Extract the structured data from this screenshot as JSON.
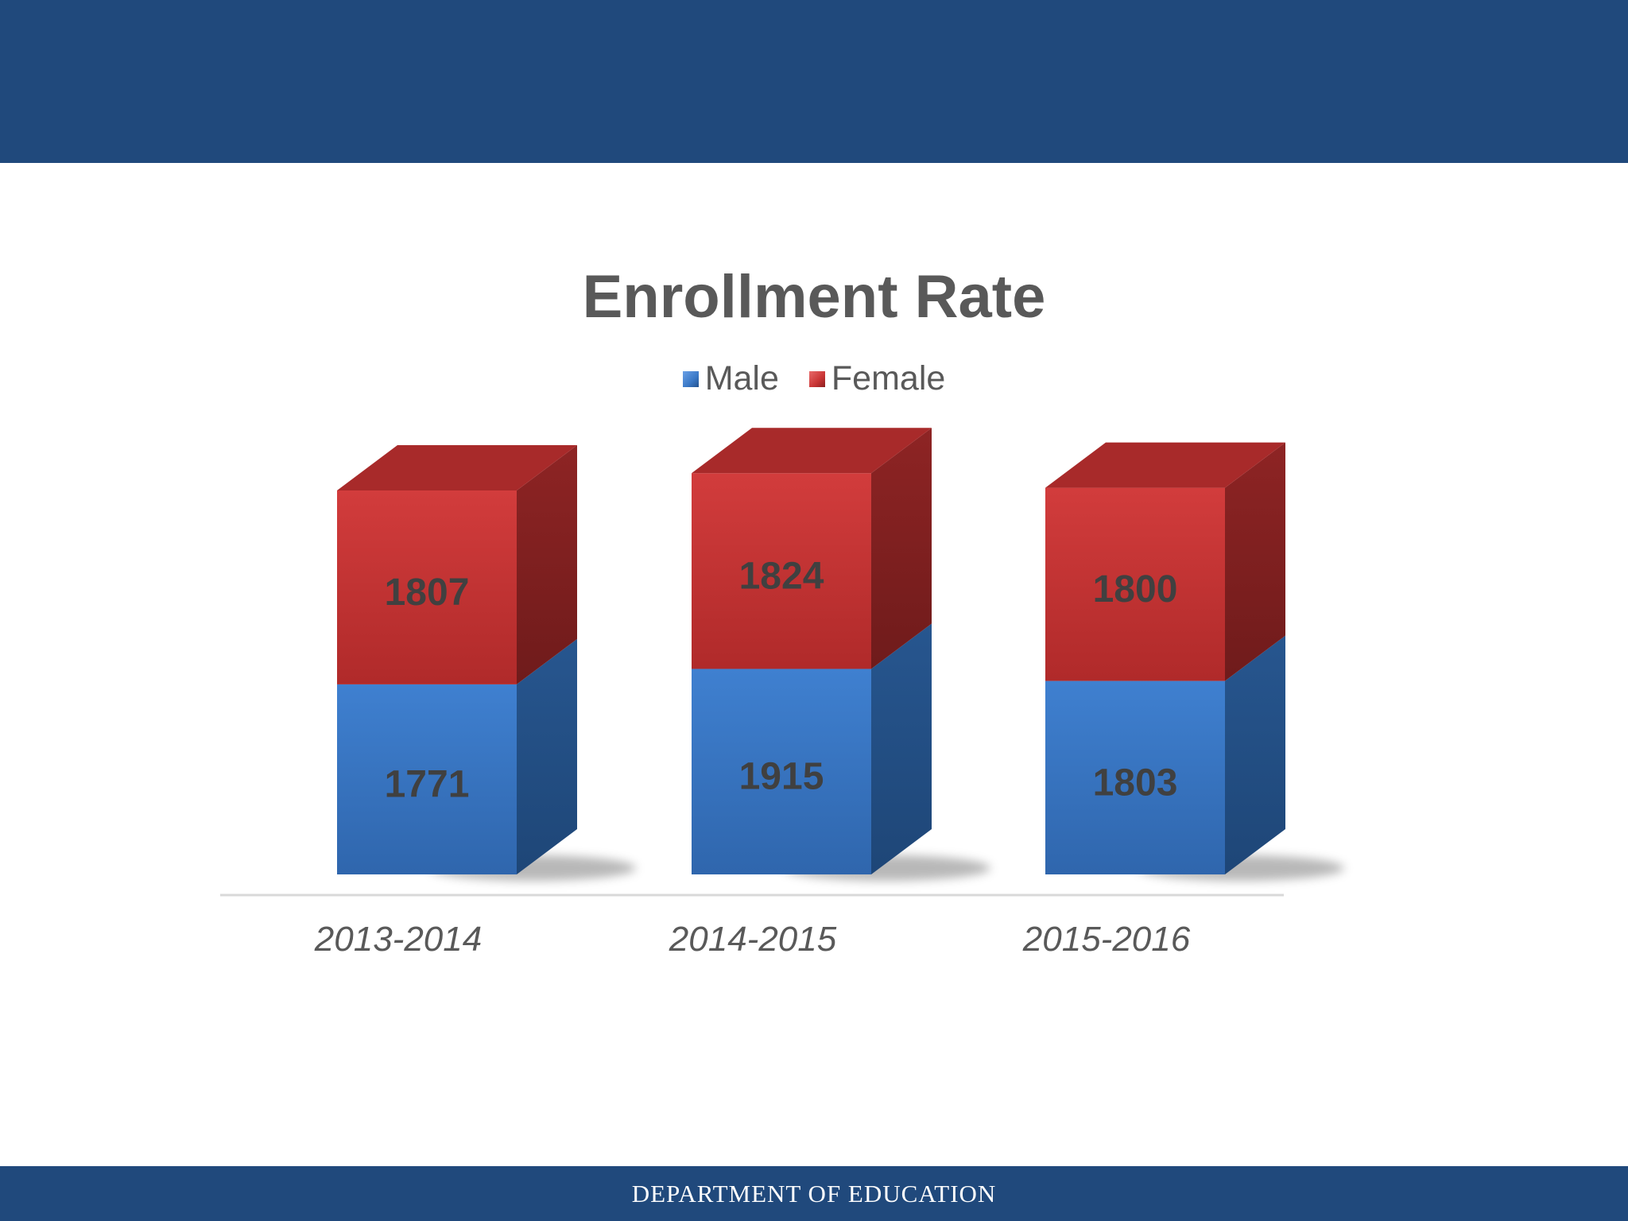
{
  "footer": {
    "text": "DEPARTMENT OF EDUCATION"
  },
  "colors": {
    "header_bar": "#20497c",
    "male": "#3a78c6",
    "female": "#c93434",
    "text": "#595959"
  },
  "chart_data": {
    "type": "bar",
    "stacked": true,
    "three_d": true,
    "title": "Enrollment Rate",
    "categories": [
      "2013-2014",
      "2014-2015",
      "2015-2016"
    ],
    "series": [
      {
        "name": "Male",
        "values": [
          1771,
          1915,
          1803
        ]
      },
      {
        "name": "Female",
        "values": [
          1807,
          1824,
          1800
        ]
      }
    ],
    "legend_position": "top",
    "grid": false,
    "ylim": [
      0,
      4000
    ]
  }
}
